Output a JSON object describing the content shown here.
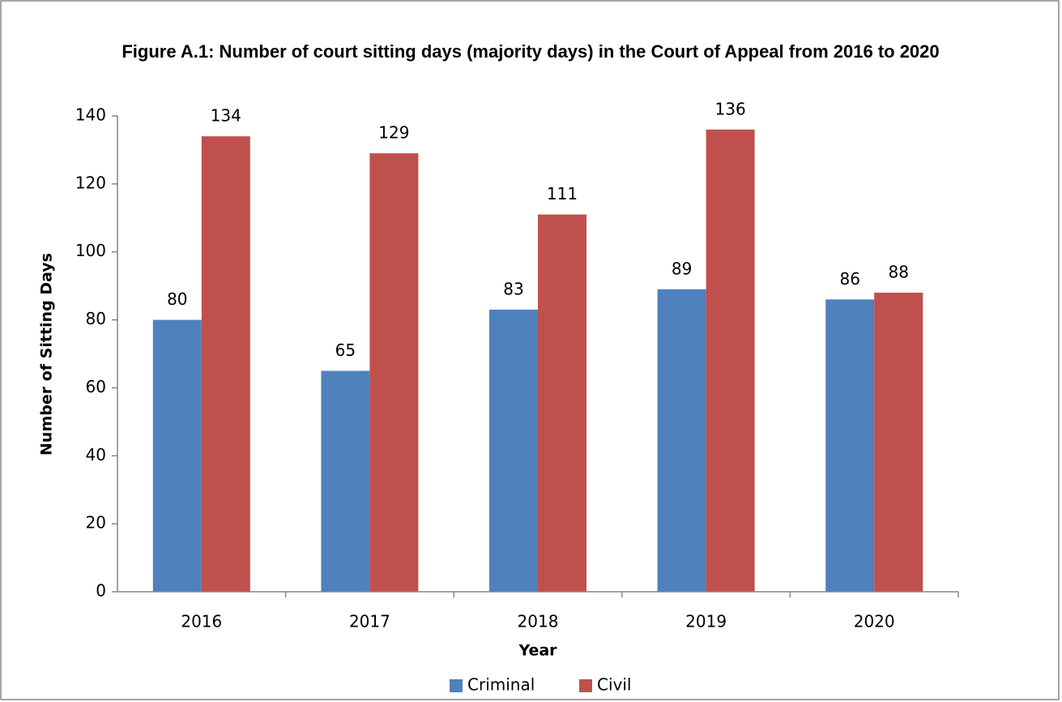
{
  "chart_data": {
    "type": "bar",
    "title": "Figure A.1: Number of court sitting days (majority days) in the Court of Appeal from 2016 to 2020",
    "x_label": "Year",
    "y_label": "Number of Sitting Days",
    "categories": [
      "2016",
      "2017",
      "2018",
      "2019",
      "2020"
    ],
    "series": [
      {
        "name": "Criminal",
        "color": "#4f81bd",
        "values": [
          80,
          65,
          83,
          89,
          86
        ]
      },
      {
        "name": "Civil",
        "color": "#c0504d",
        "values": [
          134,
          129,
          111,
          136,
          88
        ]
      }
    ],
    "ylim": [
      0,
      140
    ],
    "yticks": [
      0,
      20,
      40,
      60,
      80,
      100,
      120,
      140
    ],
    "grid": false,
    "legend": "bottom"
  }
}
